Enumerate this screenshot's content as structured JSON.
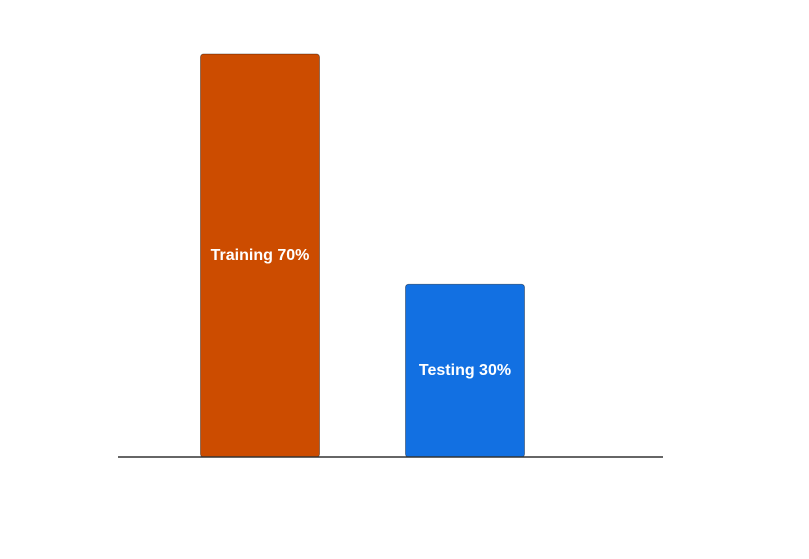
{
  "chart_data": {
    "type": "bar",
    "categories": [
      "Training",
      "Testing"
    ],
    "values": [
      70,
      30
    ],
    "data_labels": [
      "Training 70%",
      "Testing 30%"
    ],
    "colors": [
      "#cc4c00",
      "#1270e2"
    ],
    "title": "",
    "xlabel": "",
    "ylabel": "",
    "ylim": [
      0,
      70
    ],
    "grid": false
  }
}
